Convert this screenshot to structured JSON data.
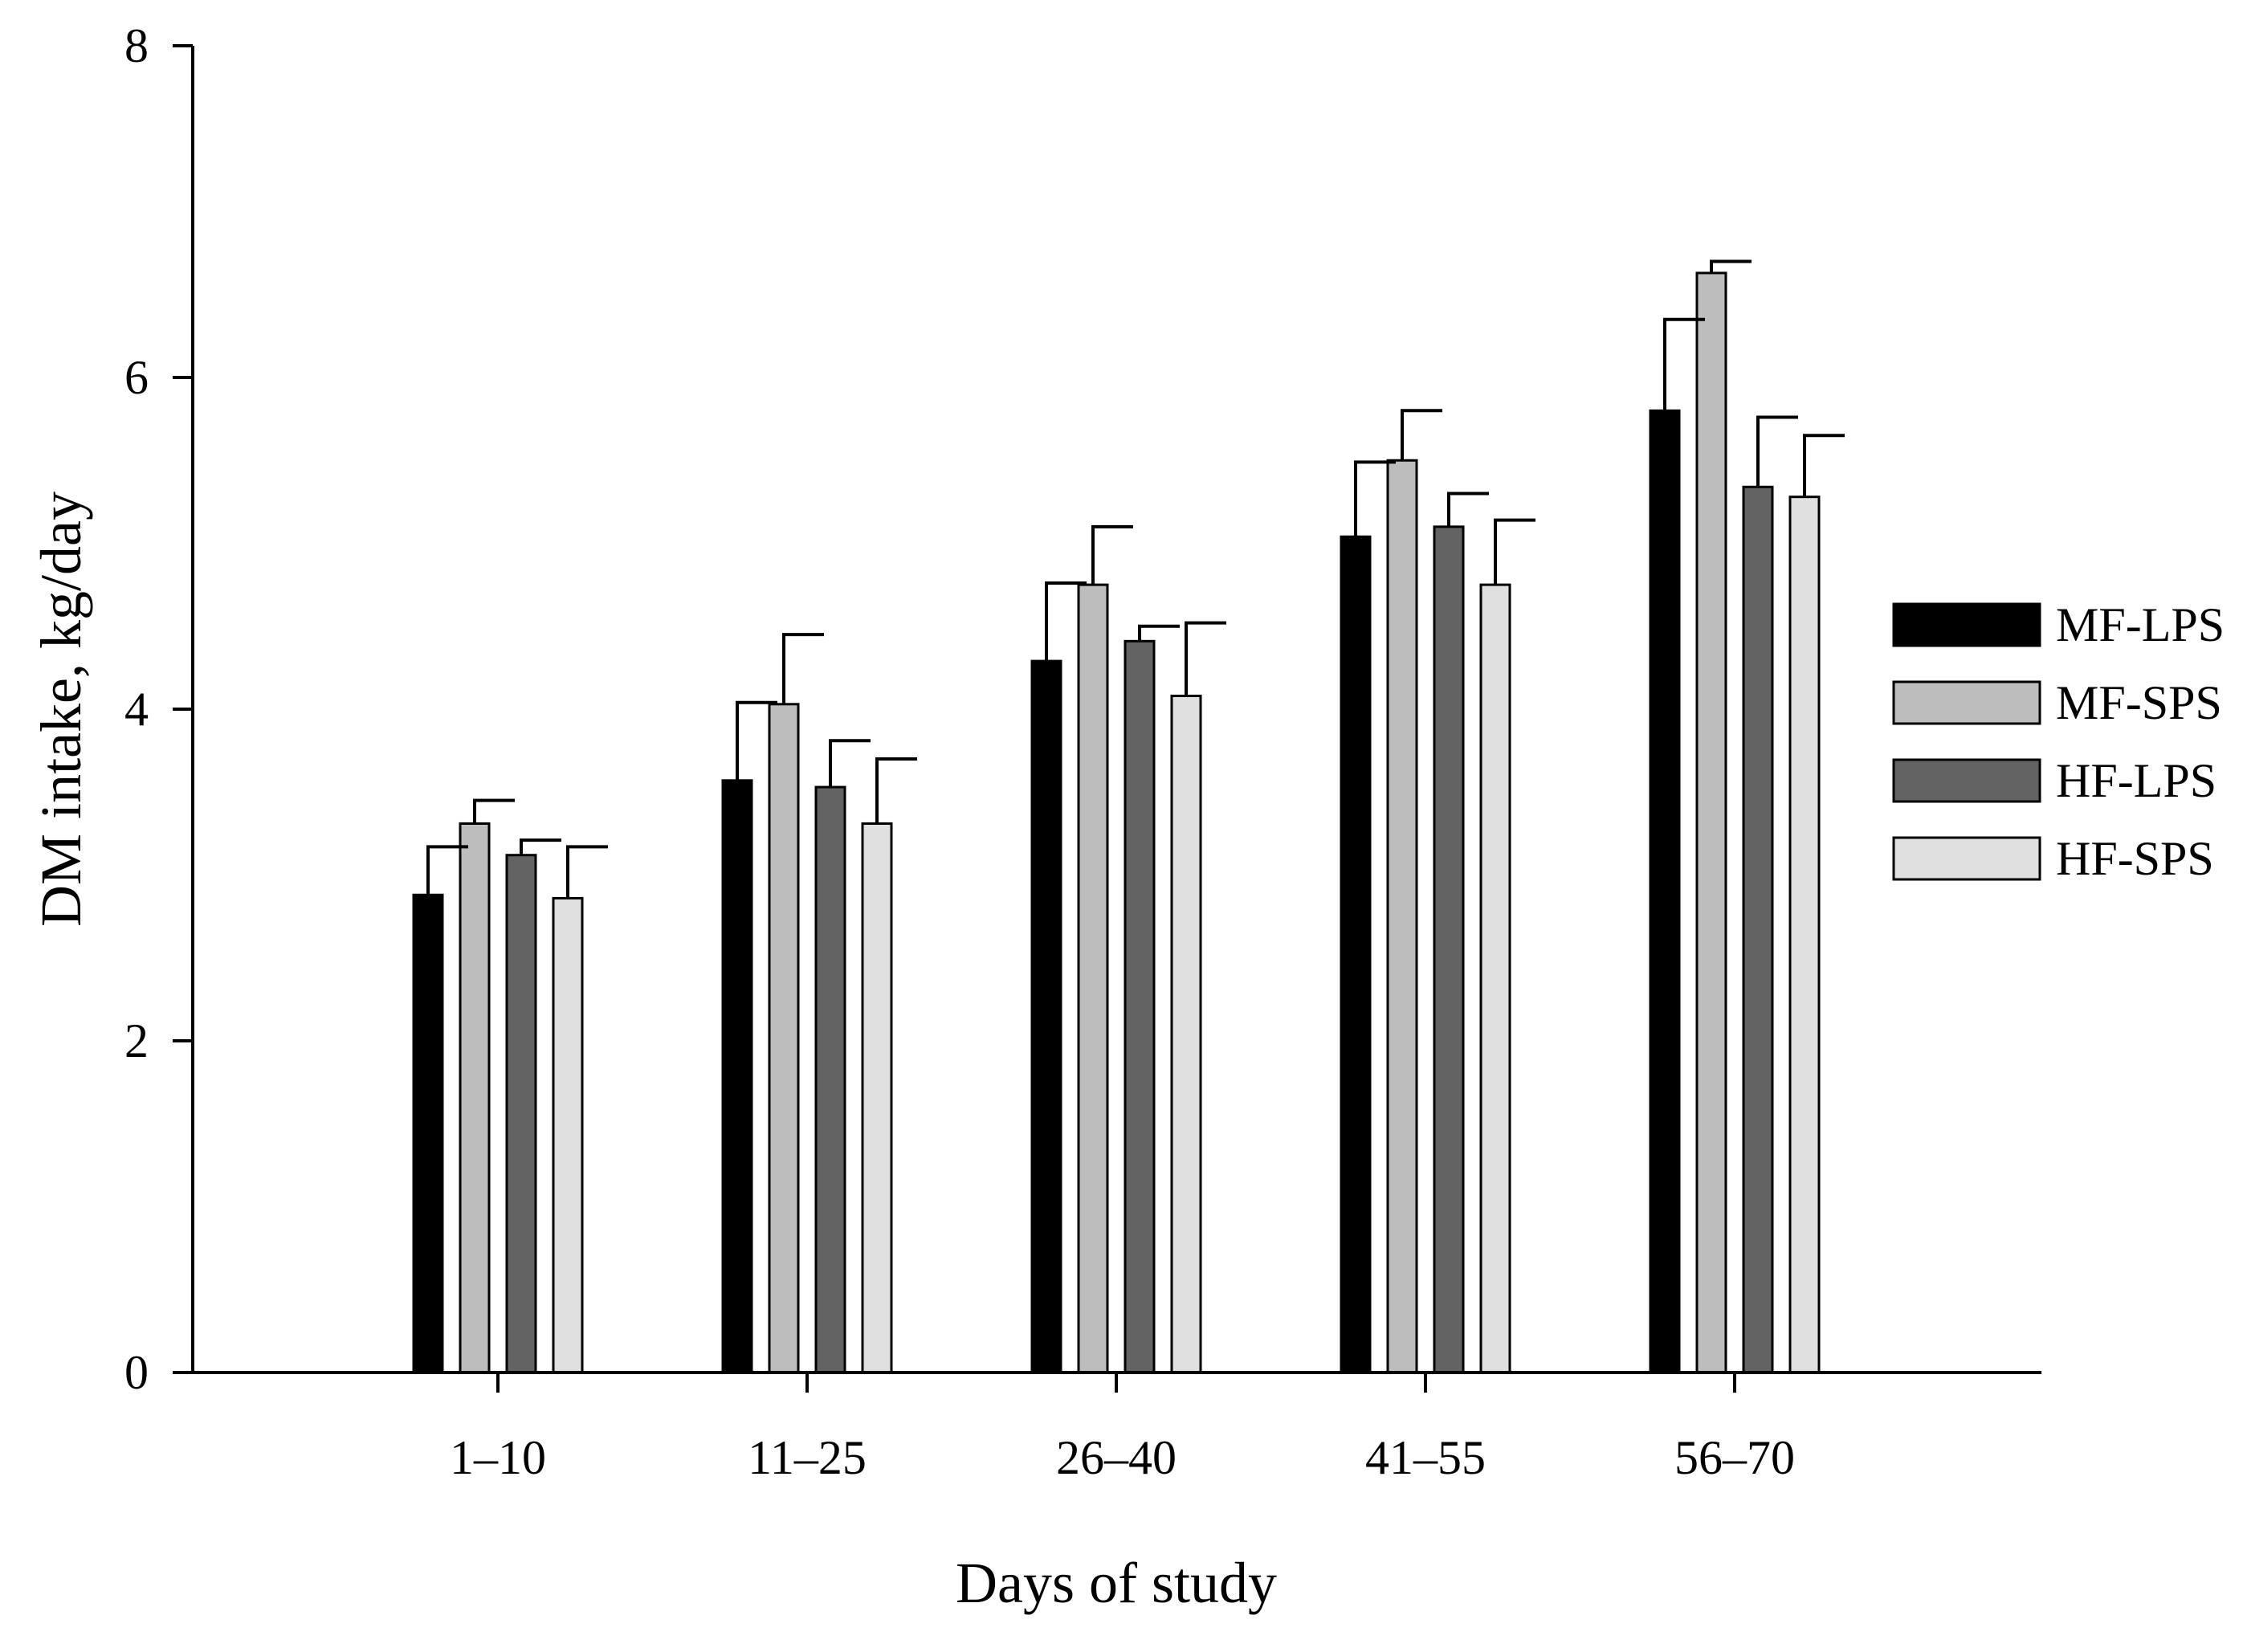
{
  "chart_data": {
    "type": "bar",
    "title": "",
    "xlabel": "Days of study",
    "ylabel": "DM intake, kg/day",
    "ylim": [
      0,
      8
    ],
    "yticks": [
      0,
      2,
      4,
      6,
      8
    ],
    "grid": false,
    "legend_position": "right",
    "categories": [
      "1–10",
      "11–25",
      "26–40",
      "41–55",
      "56–70"
    ],
    "series": [
      {
        "name": "MF-LPS",
        "color": "#000000",
        "values": [
          2.88,
          3.57,
          4.29,
          5.04,
          5.8
        ],
        "errors": [
          0.29,
          0.47,
          0.47,
          0.45,
          0.55
        ]
      },
      {
        "name": "MF-SPS",
        "color": "#bdbdbd",
        "values": [
          3.31,
          4.03,
          4.75,
          5.5,
          6.63
        ],
        "errors": [
          0.14,
          0.42,
          0.35,
          0.3,
          0.07
        ]
      },
      {
        "name": "HF-LPS",
        "color": "#636363",
        "values": [
          3.12,
          3.53,
          4.41,
          5.1,
          5.34
        ],
        "errors": [
          0.09,
          0.28,
          0.09,
          0.2,
          0.42
        ]
      },
      {
        "name": "HF-SPS",
        "color": "#e0e0e0",
        "values": [
          2.86,
          3.31,
          4.08,
          4.75,
          5.28
        ],
        "errors": [
          0.31,
          0.39,
          0.44,
          0.39,
          0.37
        ]
      }
    ]
  }
}
